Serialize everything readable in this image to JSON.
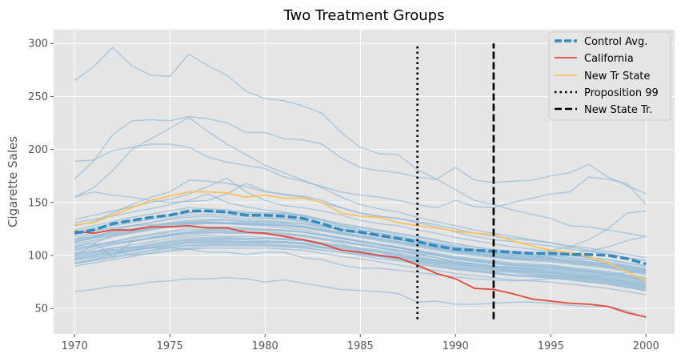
{
  "chart_data": {
    "type": "line",
    "title": "Two Treatment Groups",
    "xlabel": "",
    "ylabel": "Cigarette Sales",
    "xlim": [
      1968.9,
      2001.5
    ],
    "ylim": [
      26,
      313
    ],
    "xticks": [
      1970,
      1975,
      1980,
      1985,
      1990,
      1995,
      2000
    ],
    "yticks": [
      50,
      100,
      150,
      200,
      250,
      300
    ],
    "grid": true,
    "legend_position": "top-right",
    "x": [
      1970,
      1971,
      1972,
      1973,
      1974,
      1975,
      1976,
      1977,
      1978,
      1979,
      1980,
      1981,
      1982,
      1983,
      1984,
      1985,
      1986,
      1987,
      1988,
      1989,
      1990,
      1991,
      1992,
      1993,
      1994,
      1995,
      1996,
      1997,
      1998,
      1999,
      2000
    ],
    "control_states": [
      [
        265,
        278,
        296,
        279,
        270,
        269,
        290,
        279,
        270,
        255,
        248,
        246,
        241,
        234,
        216,
        202,
        196,
        195,
        181,
        172,
        183,
        171,
        169,
        170,
        171,
        175,
        178,
        186,
        174,
        166,
        158
      ],
      [
        189,
        190,
        199,
        202,
        205,
        205,
        202,
        193,
        188,
        185,
        182,
        174,
        170,
        165,
        160,
        157,
        155,
        152,
        148,
        145,
        152,
        146,
        145,
        150,
        154,
        158,
        160,
        174,
        172,
        168,
        148
      ],
      [
        172,
        189,
        214,
        227,
        228,
        227,
        231,
        229,
        225,
        216,
        216,
        210,
        209,
        205,
        192,
        183,
        180,
        178,
        174,
        172,
        162,
        152,
        148,
        143,
        139,
        135,
        128,
        127,
        124,
        121,
        118
      ],
      [
        155,
        164,
        180,
        200,
        210,
        220,
        230,
        217,
        205,
        195,
        185,
        178,
        171,
        164,
        155,
        148,
        144,
        141,
        136,
        132,
        128,
        124,
        121,
        118,
        115,
        112,
        108,
        105,
        102,
        98,
        95
      ],
      [
        155,
        160,
        157,
        155,
        152,
        150,
        151,
        152,
        158,
        168,
        161,
        157,
        156,
        152,
        145,
        140,
        137,
        135,
        131,
        127,
        122,
        118,
        115,
        113,
        111,
        109,
        106,
        104,
        101,
        98,
        95
      ],
      [
        128,
        132,
        140,
        148,
        155,
        160,
        171,
        170,
        168,
        165,
        160,
        158,
        155,
        150,
        145,
        140,
        137,
        135,
        132,
        129,
        125,
        121,
        118,
        116,
        114,
        112,
        109,
        107,
        104,
        101,
        98
      ],
      [
        134,
        138,
        142,
        146,
        150,
        153,
        158,
        165,
        173,
        160,
        152,
        147,
        145,
        142,
        138,
        133,
        130,
        128,
        124,
        121,
        117,
        114,
        111,
        108,
        106,
        104,
        101,
        98,
        96,
        93,
        90
      ],
      [
        131,
        134,
        137,
        141,
        144,
        148,
        152,
        158,
        150,
        146,
        143,
        141,
        138,
        134,
        130,
        127,
        124,
        121,
        118,
        115,
        111,
        108,
        105,
        103,
        101,
        100,
        98,
        96,
        93,
        90,
        87
      ],
      [
        120,
        124,
        128,
        131,
        134,
        137,
        140,
        142,
        141,
        140,
        140,
        140,
        138,
        133,
        128,
        124,
        121,
        118,
        114,
        111,
        108,
        105,
        103,
        101,
        100,
        99,
        101,
        104,
        108,
        114,
        118
      ],
      [
        112,
        117,
        123,
        128,
        131,
        135,
        138,
        139,
        138,
        137,
        136,
        135,
        133,
        129,
        125,
        121,
        118,
        115,
        111,
        108,
        105,
        102,
        99,
        97,
        96,
        105,
        108,
        115,
        125,
        140,
        142
      ],
      [
        108,
        112,
        118,
        122,
        125,
        127,
        130,
        131,
        130,
        129,
        128,
        126,
        124,
        120,
        117,
        114,
        111,
        108,
        104,
        101,
        98,
        95,
        93,
        91,
        90,
        89,
        87,
        85,
        83,
        80,
        77
      ],
      [
        106,
        109,
        113,
        117,
        120,
        123,
        126,
        127,
        127,
        126,
        125,
        124,
        122,
        119,
        116,
        113,
        110,
        107,
        103,
        100,
        97,
        94,
        92,
        90,
        89,
        88,
        86,
        84,
        82,
        79,
        76
      ],
      [
        103,
        106,
        110,
        113,
        116,
        119,
        121,
        122,
        121,
        121,
        120,
        119,
        118,
        115,
        112,
        110,
        107,
        104,
        101,
        98,
        95,
        92,
        90,
        88,
        87,
        86,
        84,
        82,
        80,
        77,
        74
      ],
      [
        101,
        104,
        107,
        110,
        113,
        116,
        118,
        119,
        118,
        118,
        117,
        116,
        115,
        112,
        110,
        107,
        105,
        102,
        99,
        96,
        94,
        92,
        90,
        88,
        87,
        85,
        83,
        81,
        79,
        76,
        73
      ],
      [
        99,
        102,
        105,
        108,
        111,
        114,
        116,
        117,
        117,
        116,
        116,
        115,
        114,
        111,
        109,
        106,
        104,
        101,
        98,
        95,
        93,
        91,
        89,
        87,
        86,
        84,
        82,
        80,
        78,
        75,
        72
      ],
      [
        97,
        100,
        103,
        106,
        109,
        112,
        114,
        115,
        115,
        115,
        114,
        113,
        112,
        110,
        107,
        105,
        103,
        100,
        97,
        94,
        92,
        90,
        88,
        86,
        85,
        83,
        81,
        79,
        77,
        74,
        71
      ],
      [
        95,
        98,
        101,
        104,
        107,
        110,
        112,
        113,
        113,
        113,
        113,
        112,
        111,
        108,
        106,
        104,
        101,
        99,
        96,
        93,
        91,
        89,
        87,
        85,
        84,
        82,
        80,
        78,
        76,
        73,
        70
      ],
      [
        93,
        96,
        99,
        102,
        105,
        108,
        110,
        111,
        111,
        111,
        111,
        110,
        109,
        107,
        105,
        103,
        100,
        98,
        95,
        93,
        90,
        88,
        86,
        85,
        83,
        81,
        80,
        78,
        76,
        73,
        70
      ],
      [
        90,
        93,
        96,
        99,
        102,
        105,
        107,
        109,
        109,
        109,
        109,
        108,
        107,
        105,
        103,
        101,
        99,
        97,
        94,
        92,
        89,
        87,
        85,
        84,
        82,
        81,
        79,
        77,
        75,
        72,
        69
      ],
      [
        124,
        128,
        132,
        136,
        139,
        142,
        145,
        144,
        143,
        141,
        140,
        139,
        137,
        133,
        129,
        126,
        123,
        120,
        117,
        114,
        111,
        108,
        106,
        104,
        103,
        102,
        100,
        98,
        96,
        93,
        90
      ],
      [
        122,
        126,
        130,
        133,
        136,
        139,
        141,
        141,
        140,
        139,
        138,
        137,
        135,
        131,
        127,
        124,
        121,
        118,
        115,
        112,
        109,
        106,
        104,
        102,
        101,
        100,
        98,
        96,
        94,
        91,
        88
      ],
      [
        118,
        121,
        125,
        128,
        131,
        134,
        136,
        137,
        136,
        135,
        135,
        134,
        132,
        128,
        125,
        122,
        119,
        116,
        113,
        110,
        107,
        104,
        102,
        100,
        99,
        98,
        96,
        94,
        92,
        89,
        86
      ],
      [
        116,
        119,
        122,
        125,
        128,
        131,
        133,
        134,
        134,
        133,
        133,
        132,
        130,
        127,
        124,
        121,
        118,
        115,
        112,
        109,
        106,
        103,
        101,
        99,
        98,
        97,
        95,
        93,
        91,
        88,
        85
      ],
      [
        114,
        117,
        120,
        123,
        126,
        129,
        131,
        132,
        131,
        131,
        131,
        130,
        128,
        125,
        122,
        119,
        116,
        113,
        110,
        107,
        104,
        102,
        100,
        98,
        97,
        96,
        94,
        92,
        90,
        87,
        84
      ],
      [
        109,
        112,
        99,
        113,
        117,
        120,
        122,
        124,
        124,
        124,
        124,
        123,
        122,
        119,
        116,
        113,
        110,
        107,
        104,
        101,
        98,
        96,
        94,
        92,
        91,
        90,
        88,
        86,
        84,
        81,
        78
      ],
      [
        100,
        103,
        106,
        100,
        102,
        104,
        106,
        107,
        107,
        107,
        107,
        106,
        105,
        102,
        99,
        97,
        94,
        91,
        88,
        86,
        83,
        81,
        79,
        77,
        76,
        75,
        73,
        71,
        69,
        66,
        63
      ],
      [
        96,
        99,
        102,
        105,
        108,
        111,
        113,
        114,
        114,
        113,
        113,
        112,
        111,
        108,
        105,
        102,
        99,
        97,
        94,
        91,
        88,
        86,
        84,
        82,
        81,
        80,
        78,
        76,
        74,
        71,
        68
      ],
      [
        92,
        95,
        98,
        101,
        104,
        107,
        109,
        110,
        110,
        110,
        110,
        109,
        108,
        105,
        103,
        100,
        97,
        95,
        92,
        89,
        87,
        85,
        83,
        81,
        80,
        79,
        77,
        75,
        73,
        70,
        67
      ],
      [
        93,
        96,
        101,
        105,
        107,
        109,
        112,
        112,
        112,
        112,
        112,
        113,
        111,
        108,
        105,
        102,
        99,
        96,
        93,
        90,
        87,
        85,
        83,
        81,
        80,
        79,
        77,
        75,
        73,
        70,
        67
      ],
      [
        102,
        104,
        107,
        108,
        107,
        107,
        106,
        103,
        103,
        101,
        103,
        103,
        98,
        96,
        91,
        88,
        88,
        86,
        84,
        82,
        80,
        78,
        77,
        76,
        77,
        78,
        79,
        80,
        82,
        84,
        86
      ],
      [
        66,
        68,
        71,
        72,
        75,
        76,
        78,
        78,
        79,
        78,
        75,
        77,
        74,
        71,
        68,
        67,
        66,
        64,
        56,
        57,
        54,
        54,
        55,
        56,
        56,
        55,
        53,
        52,
        52,
        48,
        41
      ],
      [
        115,
        118,
        121,
        124,
        127,
        130,
        132,
        133,
        133,
        132,
        132,
        131,
        130,
        127,
        124,
        121,
        118,
        115,
        112,
        109,
        106,
        104,
        102,
        100,
        99,
        98,
        96,
        94,
        92,
        89,
        86
      ],
      [
        120,
        123,
        126,
        128,
        129,
        130,
        131,
        131,
        130,
        130,
        129,
        128,
        127,
        124,
        121,
        118,
        115,
        112,
        109,
        106,
        103,
        101,
        99,
        97,
        96,
        95,
        93,
        91,
        89,
        86,
        83
      ],
      [
        98,
        101,
        104,
        107,
        110,
        113,
        115,
        116,
        116,
        116,
        116,
        115,
        114,
        111,
        108,
        106,
        103,
        100,
        97,
        95,
        92,
        90,
        88,
        86,
        85,
        84,
        82,
        80,
        78,
        75,
        72
      ],
      [
        107,
        110,
        113,
        116,
        119,
        122,
        124,
        125,
        125,
        125,
        124,
        124,
        122,
        119,
        116,
        113,
        110,
        108,
        105,
        102,
        99,
        97,
        95,
        93,
        92,
        91,
        89,
        87,
        85,
        82,
        79
      ],
      [
        111,
        114,
        118,
        121,
        124,
        127,
        129,
        130,
        130,
        129,
        129,
        128,
        126,
        123,
        120,
        117,
        114,
        111,
        108,
        105,
        102,
        100,
        98,
        96,
        95,
        94,
        92,
        90,
        88,
        85,
        82
      ],
      [
        105,
        108,
        111,
        114,
        117,
        120,
        122,
        123,
        123,
        122,
        122,
        121,
        119,
        116,
        114,
        111,
        108,
        105,
        102,
        100,
        97,
        95,
        93,
        91,
        90,
        89,
        87,
        85,
        83,
        80,
        77
      ],
      [
        113,
        116,
        119,
        122,
        125,
        128,
        130,
        131,
        131,
        130,
        130,
        129,
        127,
        124,
        121,
        118,
        116,
        113,
        110,
        107,
        104,
        102,
        100,
        98,
        97,
        96,
        94,
        92,
        90,
        87,
        84
      ],
      [
        100,
        110,
        112,
        114,
        116,
        118,
        120,
        121,
        122,
        122,
        121,
        120,
        119,
        116,
        113,
        110,
        107,
        104,
        101,
        98,
        93,
        92,
        90,
        89,
        88,
        87,
        85,
        83,
        81,
        78,
        75
      ]
    ],
    "series": [
      {
        "name": "Control Avg.",
        "values": [
          121,
          124,
          130,
          133,
          136,
          138,
          142,
          142,
          141,
          138,
          138,
          137,
          135,
          130,
          124,
          122,
          119,
          116,
          113,
          109,
          106,
          105,
          104,
          103,
          102,
          102,
          101,
          101,
          100,
          97,
          92
        ]
      },
      {
        "name": "California",
        "values": [
          123,
          121,
          124,
          124,
          127,
          127,
          128,
          126,
          126,
          122,
          121,
          118,
          115,
          111,
          105,
          103,
          100,
          98,
          91,
          83,
          78,
          69,
          68,
          64,
          59,
          57,
          55,
          54,
          52,
          46,
          42
        ]
      },
      {
        "name": "New Tr State",
        "values": [
          129,
          131,
          138,
          145,
          152,
          156,
          160,
          160,
          159,
          155,
          157,
          154,
          154,
          150,
          140,
          137,
          136,
          131,
          128,
          126,
          123,
          121,
          120,
          114,
          109,
          105,
          103,
          99,
          93,
          85,
          76
        ]
      }
    ],
    "vlines": [
      {
        "name": "Proposition 99",
        "x": 1988
      },
      {
        "name": "New State Tr.",
        "x": 1992
      }
    ],
    "colors": {
      "background": "#E5E5E5",
      "grid": "#FFFFFF",
      "control_states": "#8FB8D5",
      "control_avg": "#348ABD",
      "california": "#E24A33",
      "new_tr_state": "#FBC15E",
      "vline": "#000000"
    }
  }
}
